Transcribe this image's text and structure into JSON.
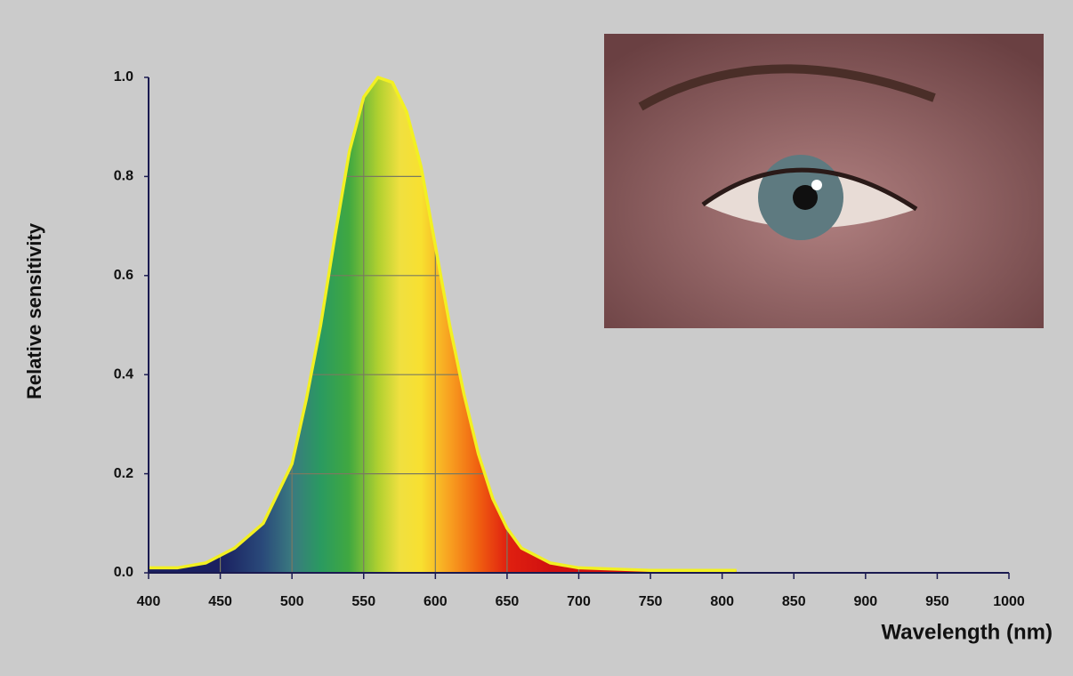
{
  "chart_data": {
    "type": "area",
    "y_label": "Relative sensitivity",
    "x_label": "Wavelength (nm)",
    "x": [
      400,
      420,
      440,
      460,
      480,
      500,
      510,
      520,
      530,
      540,
      550,
      560,
      570,
      580,
      590,
      600,
      610,
      620,
      630,
      640,
      650,
      660,
      680,
      700,
      750,
      800,
      810
    ],
    "values": [
      0.01,
      0.01,
      0.02,
      0.05,
      0.1,
      0.22,
      0.35,
      0.5,
      0.68,
      0.85,
      0.96,
      1.0,
      0.99,
      0.93,
      0.82,
      0.66,
      0.5,
      0.36,
      0.24,
      0.15,
      0.09,
      0.05,
      0.02,
      0.01,
      0.005,
      0.005,
      0.005
    ],
    "color": "#f2f022",
    "xlim": [
      400,
      1000
    ],
    "ylim": [
      0,
      1
    ],
    "xticks": [
      400,
      450,
      500,
      550,
      600,
      650,
      700,
      750,
      800,
      850,
      900,
      950,
      1000
    ],
    "yticks": [
      {
        "value": 0,
        "label": "0.0"
      },
      0.2,
      0.4,
      0.6,
      0.8,
      {
        "value": 1,
        "label": "1.0"
      }
    ],
    "grid": true
  }
}
